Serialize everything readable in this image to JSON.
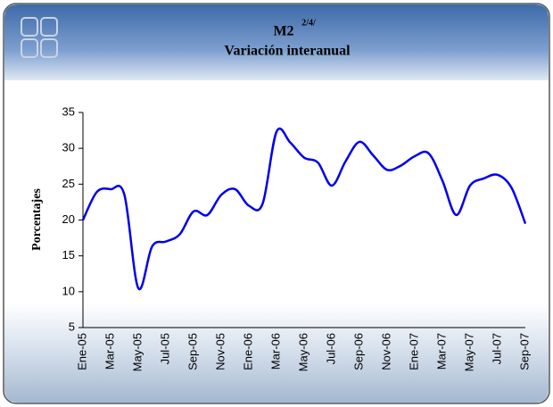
{
  "chart_data": {
    "type": "line",
    "title": "M2",
    "title_superscript": "2/4/",
    "subtitle": "Variación interanual",
    "y_label": "Porcentajes",
    "categories": [
      "Ene-05",
      null,
      "Mar-05",
      null,
      "May-05",
      null,
      "Jul-05",
      null,
      "Sep-05",
      null,
      "Nov-05",
      null,
      "Ene-06",
      null,
      "Mar-06",
      null,
      "May-06",
      null,
      "Jul-06",
      null,
      "Sep-06",
      null,
      "Nov-06",
      null,
      "Ene-07",
      null,
      "Mar-07",
      null,
      "May-07",
      null,
      "Jul-07",
      null,
      "Sep-07"
    ],
    "series": [
      {
        "color": "#0000ee",
        "values": [
          20.0,
          23.9,
          24.3,
          23.5,
          10.5,
          16.3,
          17.0,
          18.0,
          21.2,
          20.7,
          23.5,
          24.3,
          22.0,
          22.3,
          32.3,
          30.8,
          28.7,
          28.0,
          24.8,
          28.2,
          30.9,
          29.0,
          27.0,
          27.6,
          28.9,
          29.3,
          25.5,
          20.7,
          24.8,
          25.8,
          26.3,
          24.5,
          19.5
        ]
      }
    ],
    "ylim": [
      5,
      35
    ],
    "yticks": [
      5,
      10,
      15,
      20,
      25,
      30,
      35
    ]
  }
}
